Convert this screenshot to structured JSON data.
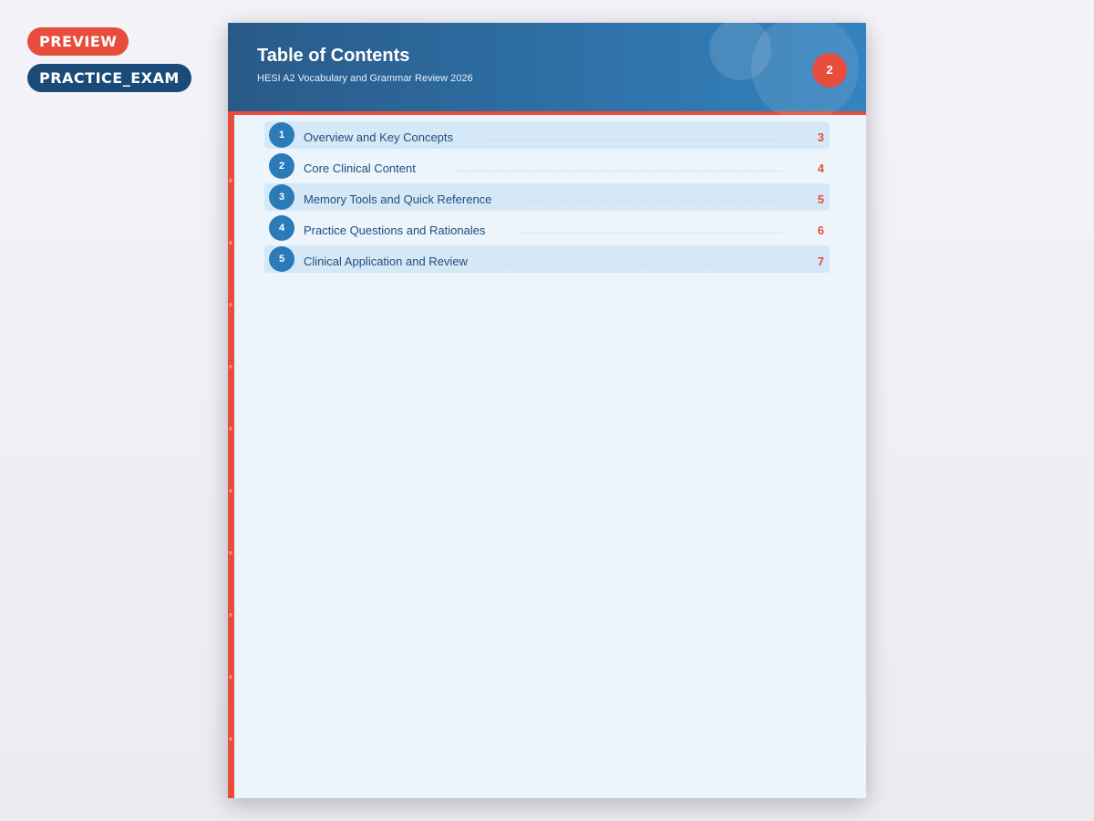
{
  "badges": {
    "preview": "PREVIEW",
    "type": "PRACTICE_EXAM"
  },
  "header": {
    "title": "Table of Contents",
    "subtitle": "HESI A2 Vocabulary and Grammar Review 2026",
    "page_number": "2"
  },
  "toc": [
    {
      "num": "1",
      "label": "Overview and Key Concepts",
      "page": "3"
    },
    {
      "num": "2",
      "label": "Core Clinical Content",
      "page": "4"
    },
    {
      "num": "3",
      "label": "Memory Tools and Quick Reference",
      "page": "5"
    },
    {
      "num": "4",
      "label": "Practice Questions and Rationales",
      "page": "6"
    },
    {
      "num": "5",
      "label": "Clinical Application and Review",
      "page": "7"
    }
  ],
  "colors": {
    "accent": "#e74c3c",
    "primary": "#2b7bb9",
    "header_dark": "#285a88"
  }
}
